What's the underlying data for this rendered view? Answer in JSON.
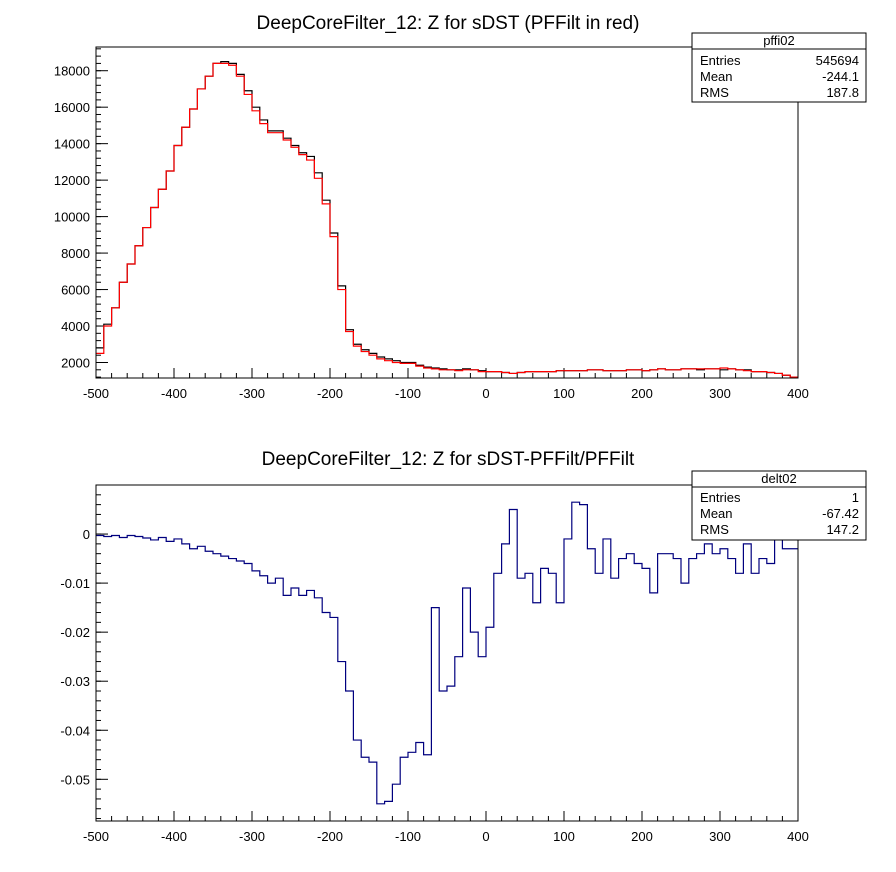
{
  "colors": {
    "top_black": "#000000",
    "top_red": "#ff0000",
    "bottom_navy": "#00007f",
    "frame": "#000000"
  },
  "chart_data": [
    {
      "type": "histogram-step",
      "title": "DeepCoreFilter_12: Z for sDST (PFFilt in red)",
      "xlim": [
        -500,
        400
      ],
      "ylim": [
        1150,
        19300
      ],
      "x_ticks": [
        -500,
        -400,
        -300,
        -200,
        -100,
        0,
        100,
        200,
        300,
        400
      ],
      "x_tick_labels": [
        "-500",
        "-400",
        "-300",
        "-200",
        "-100",
        "0",
        "100",
        "200",
        "300",
        "400"
      ],
      "y_ticks": [
        2000,
        4000,
        6000,
        8000,
        10000,
        12000,
        14000,
        16000,
        18000
      ],
      "y_tick_labels": [
        "2000",
        "4000",
        "6000",
        "8000",
        "10000",
        "12000",
        "14000",
        "16000",
        "18000"
      ],
      "bin_edges_start": -500,
      "bin_width": 10,
      "stats_box": {
        "name": "pffi02",
        "rows": [
          {
            "label": "Entries",
            "value": "545694"
          },
          {
            "label": "Mean",
            "value": "-244.1"
          },
          {
            "label": "RMS",
            "value": "187.8"
          }
        ]
      },
      "series": [
        {
          "color_key": "top_black",
          "values": [
            2800,
            4100,
            5000,
            6400,
            7400,
            8400,
            9400,
            10500,
            11500,
            12500,
            13900,
            14900,
            15900,
            17000,
            17700,
            18400,
            18500,
            18400,
            17800,
            16900,
            16000,
            15300,
            14700,
            14700,
            14300,
            13900,
            13500,
            13300,
            12400,
            10900,
            9100,
            6200,
            3800,
            3000,
            2700,
            2500,
            2300,
            2200,
            2100,
            2000,
            2000,
            1850,
            1750,
            1700,
            1650,
            1600,
            1600,
            1650,
            1600,
            1550,
            1500,
            1500,
            1450,
            1400,
            1450,
            1500,
            1500,
            1500,
            1500,
            1550,
            1550,
            1550,
            1550,
            1600,
            1600,
            1550,
            1550,
            1550,
            1600,
            1600,
            1550,
            1600,
            1650,
            1600,
            1600,
            1650,
            1650,
            1600,
            1650,
            1650,
            1600,
            1650,
            1600,
            1600,
            1500,
            1500,
            1450,
            1400,
            1300,
            1200
          ]
        },
        {
          "color_key": "top_red",
          "values": [
            2500,
            4000,
            5000,
            6400,
            7400,
            8400,
            9400,
            10500,
            11500,
            12500,
            13900,
            14900,
            15900,
            17000,
            17700,
            18400,
            18400,
            18300,
            17700,
            16700,
            15800,
            15100,
            14600,
            14600,
            14200,
            13800,
            13400,
            13100,
            12100,
            10700,
            8900,
            6000,
            3700,
            2900,
            2600,
            2400,
            2200,
            2100,
            2000,
            1950,
            1950,
            1800,
            1700,
            1650,
            1600,
            1600,
            1550,
            1600,
            1600,
            1500,
            1500,
            1500,
            1450,
            1400,
            1450,
            1500,
            1500,
            1500,
            1500,
            1550,
            1550,
            1550,
            1550,
            1600,
            1600,
            1550,
            1550,
            1550,
            1600,
            1600,
            1550,
            1600,
            1650,
            1600,
            1600,
            1650,
            1650,
            1650,
            1650,
            1650,
            1700,
            1650,
            1600,
            1550,
            1500,
            1500,
            1450,
            1400,
            1300,
            1200
          ]
        }
      ]
    },
    {
      "type": "histogram-step",
      "title": "DeepCoreFilter_12: Z for sDST-PFFilt/PFFilt",
      "xlim": [
        -500,
        400
      ],
      "ylim": [
        -0.0585,
        0.01
      ],
      "x_ticks": [
        -500,
        -400,
        -300,
        -200,
        -100,
        0,
        100,
        200,
        300,
        400
      ],
      "x_tick_labels": [
        "-500",
        "-400",
        "-300",
        "-200",
        "-100",
        "0",
        "100",
        "200",
        "300",
        "400"
      ],
      "y_ticks": [
        0,
        -0.01,
        -0.02,
        -0.03,
        -0.04,
        -0.05
      ],
      "y_tick_labels": [
        "0",
        "-0.01",
        "-0.02",
        "-0.03",
        "-0.04",
        "-0.05"
      ],
      "bin_edges_start": -500,
      "bin_width": 10,
      "stats_box": {
        "name": "delt02",
        "rows": [
          {
            "label": "Entries",
            "value": "1"
          },
          {
            "label": "Mean",
            "value": "-67.42"
          },
          {
            "label": "RMS",
            "value": "147.2"
          }
        ]
      },
      "series": [
        {
          "color_key": "bottom_navy",
          "values": [
            -0.0003,
            -0.0005,
            -0.0003,
            -0.0007,
            -0.0003,
            -0.0005,
            -0.0008,
            -0.0012,
            -0.0007,
            -0.0015,
            -0.001,
            -0.002,
            -0.003,
            -0.0025,
            -0.0035,
            -0.004,
            -0.0045,
            -0.005,
            -0.0055,
            -0.006,
            -0.0075,
            -0.0085,
            -0.01,
            -0.009,
            -0.0125,
            -0.011,
            -0.0125,
            -0.0115,
            -0.013,
            -0.016,
            -0.017,
            -0.026,
            -0.032,
            -0.042,
            -0.0455,
            -0.0465,
            -0.055,
            -0.0545,
            -0.051,
            -0.0455,
            -0.0445,
            -0.0425,
            -0.045,
            -0.015,
            -0.032,
            -0.031,
            -0.025,
            -0.011,
            -0.02,
            -0.025,
            -0.019,
            -0.008,
            -0.002,
            0.005,
            -0.009,
            -0.008,
            -0.014,
            -0.007,
            -0.008,
            -0.014,
            -0.001,
            0.0065,
            0.006,
            -0.003,
            -0.008,
            -0.001,
            -0.009,
            -0.005,
            -0.004,
            -0.006,
            -0.007,
            -0.012,
            -0.004,
            -0.004,
            -0.005,
            -0.01,
            -0.005,
            -0.004,
            -0.002,
            -0.004,
            -0.003,
            -0.005,
            -0.008,
            -0.002,
            -0.008,
            -0.005,
            -0.006,
            0.0,
            -0.003,
            -0.003
          ]
        }
      ]
    }
  ]
}
